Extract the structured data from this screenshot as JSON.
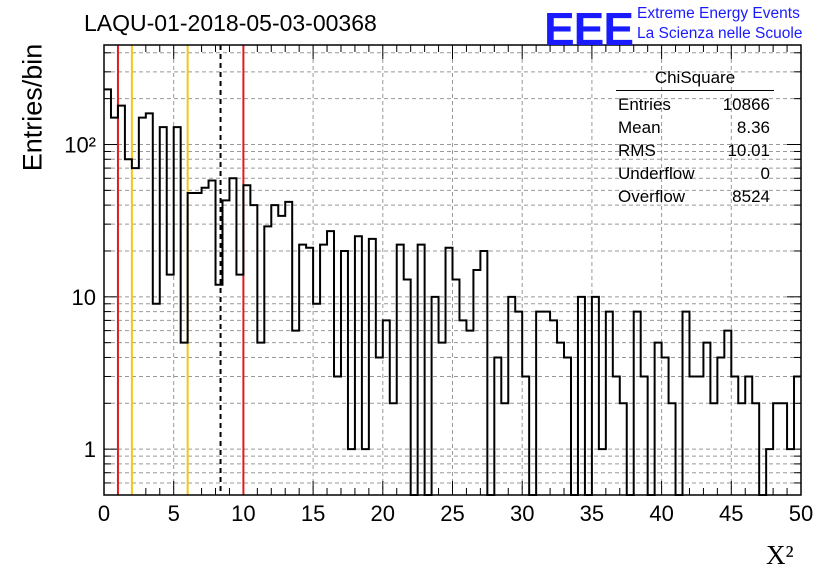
{
  "title": "LAQU-01-2018-05-03-00368",
  "logo": {
    "mark": "EEE",
    "line1": "Extreme Energy Events",
    "line2": "La Scienza nelle Scuole"
  },
  "stats": {
    "name": "ChiSquare",
    "rows": [
      {
        "label": "Entries",
        "value": "10866"
      },
      {
        "label": "Mean",
        "value": "8.36"
      },
      {
        "label": "RMS",
        "value": "10.01"
      },
      {
        "label": "Underflow",
        "value": "0"
      },
      {
        "label": "Overflow",
        "value": "8524"
      }
    ]
  },
  "chart_data": {
    "type": "histogram",
    "ylabel": "Entries/bin",
    "xlabel": "X²",
    "xlim": [
      0,
      50
    ],
    "ylim": [
      0.5,
      450
    ],
    "yscale": "log",
    "grid": true,
    "bin_width": 0.5,
    "xticks": [
      0,
      5,
      10,
      15,
      20,
      25,
      30,
      35,
      40,
      45,
      50
    ],
    "yticks": [
      {
        "v": 1,
        "label": "1"
      },
      {
        "v": 10,
        "label": "10"
      },
      {
        "v": 100,
        "label": "10²"
      }
    ],
    "values": [
      230,
      150,
      180,
      80,
      70,
      150,
      160,
      9,
      130,
      14,
      130,
      5,
      48,
      48,
      52,
      58,
      12,
      43,
      60,
      14,
      54,
      40,
      5,
      29,
      40,
      34,
      42,
      6,
      22,
      21,
      9,
      22,
      27,
      3,
      20,
      1,
      25,
      1,
      24,
      4,
      7,
      2,
      22,
      13,
      0,
      22,
      0,
      10,
      5,
      21,
      13,
      7,
      6,
      15,
      20,
      0,
      4,
      2,
      10,
      8,
      3,
      0,
      8,
      8,
      7,
      5,
      4,
      0,
      10,
      0,
      10,
      1,
      8,
      3,
      2,
      0,
      8,
      3,
      0,
      5,
      4,
      2,
      0,
      8,
      3,
      3,
      5,
      2,
      4,
      6,
      3,
      2,
      3,
      2,
      0,
      1,
      2,
      2,
      1,
      3
    ],
    "lines": [
      {
        "x": 1,
        "color": "#e31a1c",
        "style": "solid"
      },
      {
        "x": 10,
        "color": "#e31a1c",
        "style": "solid"
      },
      {
        "x": 2,
        "color": "#f5c518",
        "style": "solid"
      },
      {
        "x": 6,
        "color": "#f5c518",
        "style": "solid"
      },
      {
        "x": 8.36,
        "color": "#000000",
        "style": "dashed"
      }
    ]
  }
}
